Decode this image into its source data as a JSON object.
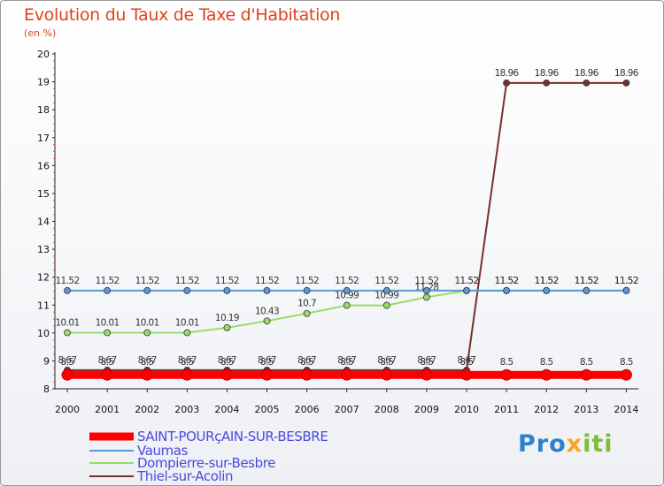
{
  "chart_data": {
    "type": "line",
    "title": "Evolution du Taux de Taxe d'Habitation",
    "subtitle": "(en %)",
    "x": [
      "2000",
      "2001",
      "2002",
      "2003",
      "2004",
      "2005",
      "2006",
      "2007",
      "2008",
      "2009",
      "2010",
      "2011",
      "2012",
      "2013",
      "2014"
    ],
    "ylim": [
      8,
      20
    ],
    "yticks": [
      8,
      9,
      10,
      11,
      12,
      13,
      14,
      15,
      16,
      17,
      18,
      19,
      20
    ],
    "grid": false,
    "legend_position": "bottom-left",
    "series": [
      {
        "name": "SAINT-POURçAIN-SUR-BESBRE",
        "color": "#ff0000",
        "labels": [
          "8.5",
          "8.5",
          "8.5",
          "8.5",
          "8.5",
          "8.5",
          "8.5",
          "8.5",
          "8.5",
          "8.5",
          "8.5",
          "8.5",
          "8.5",
          "8.5",
          "8.5"
        ],
        "values": [
          8.5,
          8.5,
          8.5,
          8.5,
          8.5,
          8.5,
          8.5,
          8.5,
          8.5,
          8.5,
          8.5,
          8.5,
          8.5,
          8.5,
          8.5
        ]
      },
      {
        "name": "Vaumas",
        "color": "#5b9bd5",
        "labels": [
          "11.52",
          "11.52",
          "11.52",
          "11.52",
          "11.52",
          "11.52",
          "11.52",
          "11.52",
          "11.52",
          "11.52",
          "11.52",
          "11.52",
          "11.52",
          "11.52",
          "11.52"
        ],
        "values": [
          11.52,
          11.52,
          11.52,
          11.52,
          11.52,
          11.52,
          11.52,
          11.52,
          11.52,
          11.52,
          11.52,
          11.52,
          11.52,
          11.52,
          11.52
        ]
      },
      {
        "name": "Dompierre-sur-Besbre",
        "color": "#99dd66",
        "labels": [
          "10.01",
          "10.01",
          "10.01",
          "10.01",
          "10.19",
          "10.43",
          "10.7",
          "10.99",
          "10.99",
          "11.28",
          "11.52",
          "11.52",
          "11.52",
          "11.52",
          "11.52"
        ],
        "values": [
          10.01,
          10.01,
          10.01,
          10.01,
          10.19,
          10.43,
          10.7,
          10.99,
          10.99,
          11.28,
          11.52,
          11.52,
          11.52,
          11.52,
          11.52
        ]
      },
      {
        "name": "Thiel-sur-Acolin",
        "color": "#7a2e2e",
        "labels": [
          "8.67",
          "8.67",
          "8.67",
          "8.67",
          "8.67",
          "8.67",
          "8.67",
          "8.67",
          "8.67",
          "8.67",
          "8.67",
          "18.96",
          "18.96",
          "18.96",
          "18.96"
        ],
        "values": [
          8.67,
          8.67,
          8.67,
          8.67,
          8.67,
          8.67,
          8.67,
          8.67,
          8.67,
          8.67,
          8.67,
          18.96,
          18.96,
          18.96,
          18.96
        ]
      }
    ]
  },
  "brand": {
    "p1": "Pro",
    "p2": "x",
    "p3": "iti"
  }
}
